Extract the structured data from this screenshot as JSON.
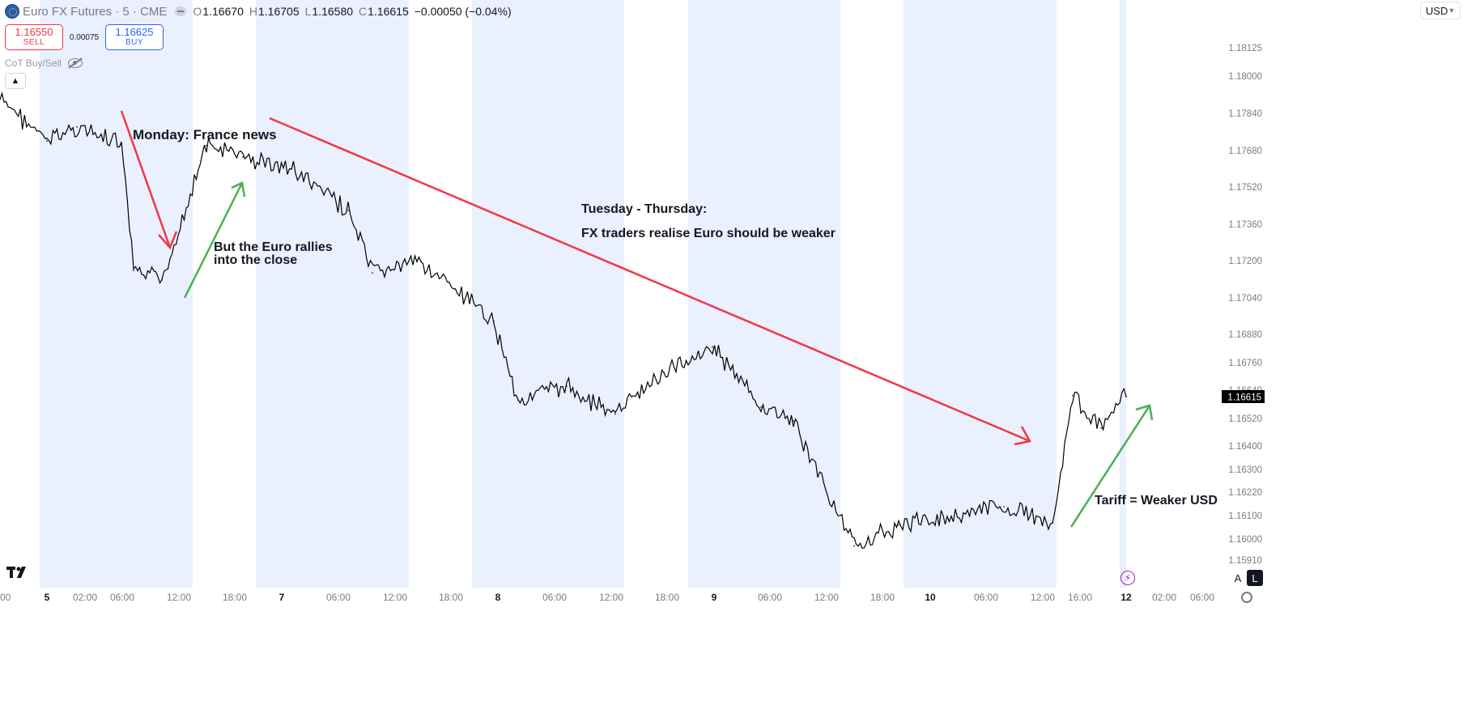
{
  "header": {
    "symbol_title": "Euro FX Futures · 5 · CME",
    "open_key": "O",
    "open": "1.16670",
    "high_key": "H",
    "high": "1.16705",
    "low_key": "L",
    "low": "1.16580",
    "close_key": "C",
    "close": "1.16615",
    "change": "−0.00050 (−0.04%)"
  },
  "trade": {
    "sell_price": "1.16550",
    "sell_label": "SELL",
    "spread": "0.00075",
    "buy_price": "1.16625",
    "buy_label": "BUY"
  },
  "indicator": {
    "name": "CoT Buy/Sell"
  },
  "currency": "USD",
  "colors": {
    "shade": "#eaf0fd",
    "candle": "#000000",
    "down_arrow": "#f23645",
    "up_arrow": "#4caf50",
    "price_label_bg": "#000000"
  },
  "price_scale": {
    "ticks": [
      "1.18125",
      "1.18000",
      "1.17840",
      "1.17680",
      "1.17520",
      "1.17360",
      "1.17200",
      "1.17040",
      "1.16880",
      "1.16760",
      "1.16640",
      "1.16520",
      "1.16400",
      "1.16300",
      "1.16220",
      "1.16100",
      "1.16000",
      "1.15910"
    ],
    "current_price": "1.16615"
  },
  "time_scale": {
    "labels": [
      ":00",
      "5",
      "02:00",
      "06:00",
      "12:00",
      "18:00",
      "7",
      "06:00",
      "12:00",
      "18:00",
      "8",
      "06:00",
      "12:00",
      "18:00",
      "9",
      "06:00",
      "12:00",
      "18:00",
      "10",
      "06:00",
      "12:00",
      "16:00",
      "12",
      "02:00",
      "06:00"
    ],
    "bold": [
      "5",
      "7",
      "8",
      "9",
      "10",
      "12"
    ]
  },
  "annotations": {
    "monday": "Monday: France news",
    "rally_1": "But the Euro rallies",
    "rally_2": "into the close",
    "tue_thu": "Tuesday - Thursday:",
    "fx_traders": "FX traders realise Euro should be weaker",
    "tariff": "Tariff = Weaker USD"
  },
  "chart_data": {
    "type": "line",
    "title": "Euro FX Futures · 5 · CME",
    "xlabel": "",
    "ylabel": "",
    "ylim": [
      1.1591,
      1.1813
    ],
    "x": [
      "4 late",
      "5 00:00",
      "5 03:00",
      "5 06:00",
      "5 08:00",
      "5 10:00",
      "5 13:00",
      "5 16:00",
      "5 20:00",
      "7 02:00",
      "7 06:00",
      "7 12:00",
      "7 18:00",
      "8 02:00",
      "8 08:00",
      "8 14:00",
      "8 20:00",
      "9 02:00",
      "9 08:00",
      "9 12:00",
      "9 18:00",
      "10 00:00",
      "10 06:00",
      "10 10:00",
      "10 14:00",
      "10 16:00",
      "10 22:00",
      "12 00:00"
    ],
    "series": [
      {
        "values": [
          1.179,
          1.1772,
          1.1778,
          1.177,
          1.1716,
          1.1712,
          1.177,
          1.1765,
          1.176,
          1.1742,
          1.1715,
          1.172,
          1.1702,
          1.1694,
          1.166,
          1.1666,
          1.1654,
          1.1672,
          1.1683,
          1.1657,
          1.1651,
          1.1597,
          1.1606,
          1.1614,
          1.1607,
          1.1662,
          1.1648,
          1.16615
        ]
      }
    ],
    "shaded_sessions": true
  }
}
